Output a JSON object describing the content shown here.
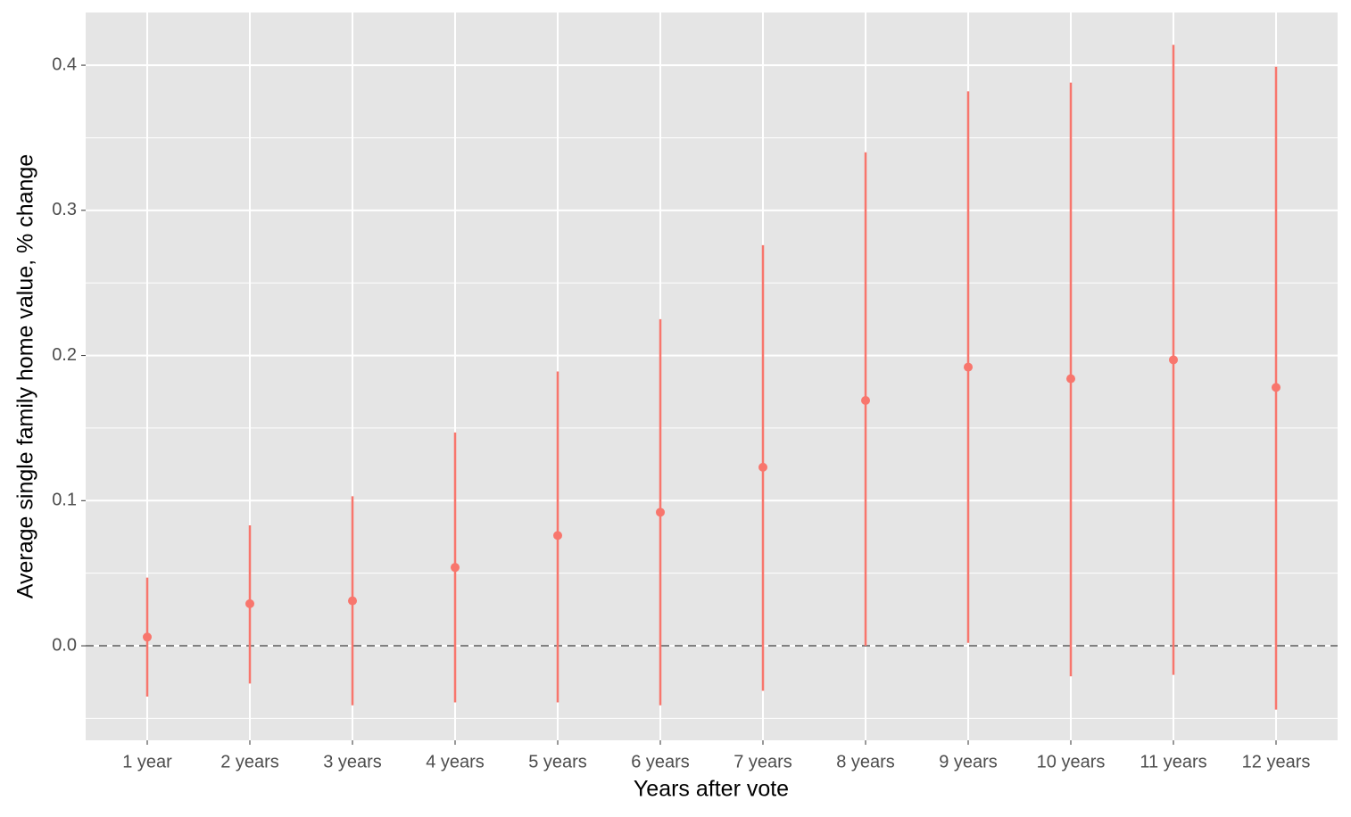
{
  "chart_data": {
    "type": "pointrange",
    "x_label": "Years after vote",
    "y_label": "Average single family home value, % change",
    "categories": [
      "1 year",
      "2 years",
      "3 years",
      "4 years",
      "5 years",
      "6 years",
      "7 years",
      "8 years",
      "9 years",
      "10 years",
      "11 years",
      "12 years"
    ],
    "series": [
      {
        "color": "#f8766d",
        "values": [
          0.006,
          0.029,
          0.031,
          0.054,
          0.076,
          0.092,
          0.123,
          0.169,
          0.192,
          0.184,
          0.197,
          0.178
        ],
        "lower": [
          -0.035,
          -0.026,
          -0.041,
          -0.039,
          -0.039,
          -0.041,
          -0.031,
          0.0,
          0.002,
          -0.021,
          -0.02,
          -0.044
        ],
        "upper": [
          0.047,
          0.083,
          0.103,
          0.147,
          0.189,
          0.225,
          0.276,
          0.34,
          0.382,
          0.388,
          0.414,
          0.399
        ]
      }
    ],
    "ylim": [
      -0.0651,
      0.4363
    ],
    "yticks": [
      {
        "value": 0,
        "label": "0.0"
      },
      0.1,
      0.2,
      0.3,
      0.4
    ],
    "hline": 0,
    "grid": true
  }
}
